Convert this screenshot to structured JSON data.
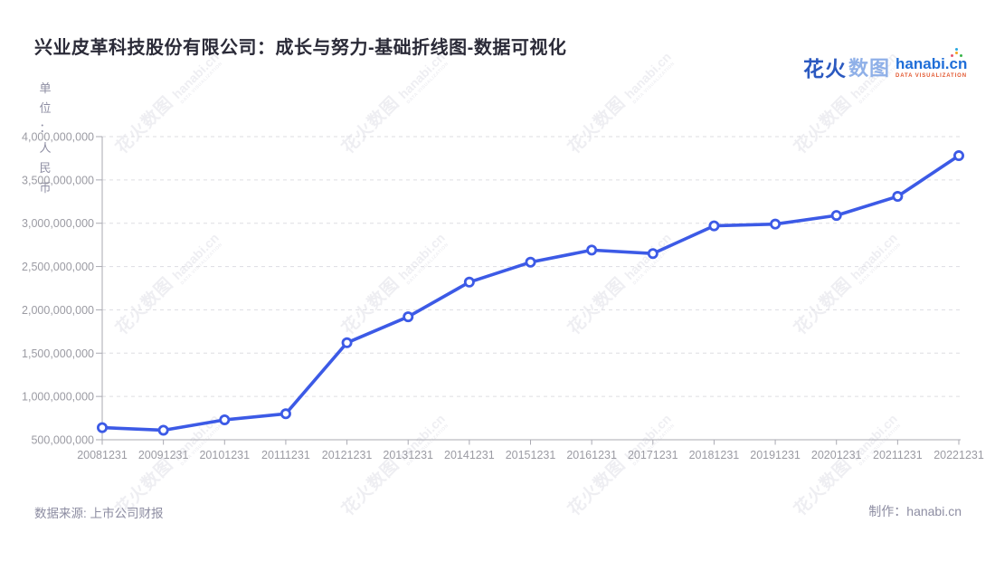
{
  "title": "兴业皮革科技股份有限公司：成长与努力-基础折线图-数据可视化",
  "logo": {
    "brand_cn_primary": "花火",
    "brand_cn_secondary": "数图",
    "brand_en": "hanabi.cn",
    "brand_sub": "DATA VISUALIZATION"
  },
  "y_axis": {
    "unit_label": "单位：人民币",
    "tick_labels": [
      "500,000,000",
      "1,000,000,000",
      "1,500,000,000",
      "2,000,000,000",
      "2,500,000,000",
      "3,000,000,000",
      "3,500,000,000",
      "4,000,000,000"
    ]
  },
  "footer": {
    "source": "数据来源: 上市公司财报",
    "credit": "制作：hanabi.cn"
  },
  "watermark": {
    "text_cn": "花火数图",
    "text_en": "hanabi.cn",
    "sub": "DATA VISUALIZATION"
  },
  "colors": {
    "line": "#3C5AE6",
    "marker_fill": "#FFFFFF",
    "axis": "#AAAAB2",
    "grid": "#DDDDE2",
    "tick_text": "#9B9BA3",
    "title_text": "#2B2B38",
    "muted_text": "#8D8DA2",
    "brand_blue": "#2B59C0",
    "brand_blue_light": "#8FB0E8",
    "brand_en_blue": "#1F6ED8",
    "brand_orange": "#E2572F",
    "background": "#FFFFFF"
  },
  "chart_data": {
    "type": "line",
    "title": "兴业皮革科技股份有限公司：成长与努力-基础折线图-数据可视化",
    "xlabel": "",
    "ylabel": "单位：人民币",
    "x": [
      "20081231",
      "20091231",
      "20101231",
      "20111231",
      "20121231",
      "20131231",
      "20141231",
      "20151231",
      "20161231",
      "20171231",
      "20181231",
      "20191231",
      "20201231",
      "20211231",
      "20221231"
    ],
    "values": [
      640000000,
      610000000,
      730000000,
      800000000,
      1620000000,
      1920000000,
      2320000000,
      2550000000,
      2690000000,
      2650000000,
      2970000000,
      2990000000,
      3090000000,
      3310000000,
      3780000000
    ],
    "ylim": [
      500000000,
      4000000000
    ],
    "ytick_interval": 500000000,
    "grid": true,
    "legend": false,
    "source": "上市公司财报"
  }
}
